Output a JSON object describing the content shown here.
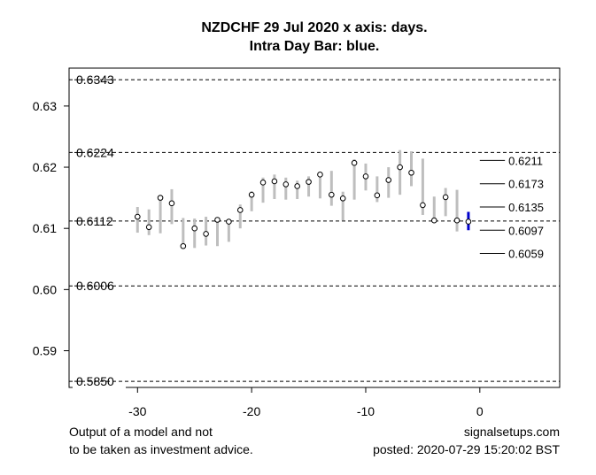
{
  "chart_data": {
    "type": "line",
    "title": "NZDCHF 29 Jul 2020 x axis: days.",
    "subtitle": "Intra Day Bar: blue.",
    "xlim": [
      -36,
      7
    ],
    "ylim": [
      0.584,
      0.6362
    ],
    "x_ticks": [
      -30,
      -20,
      -10,
      0
    ],
    "x_tick_labels": [
      "-30",
      "-20",
      "-10",
      "0"
    ],
    "y_ticks": [
      0.59,
      0.6,
      0.61,
      0.62,
      0.63
    ],
    "y_tick_labels": [
      "0.59",
      "0.60",
      "0.61",
      "0.62",
      "0.63"
    ],
    "reference_lines": [
      {
        "value": 0.6343,
        "label": "0.6343"
      },
      {
        "value": 0.6224,
        "label": "0.6224"
      },
      {
        "value": 0.6112,
        "label": "0.6112"
      },
      {
        "value": 0.6006,
        "label": "0.6006"
      },
      {
        "value": 0.585,
        "label": "0.5850"
      }
    ],
    "level_marks": [
      {
        "value": 0.6211,
        "label": "0.6211"
      },
      {
        "value": 0.6173,
        "label": "0.6173"
      },
      {
        "value": 0.6135,
        "label": "0.6135"
      },
      {
        "value": 0.6097,
        "label": "0.6097"
      },
      {
        "value": 0.6059,
        "label": "0.6059"
      }
    ],
    "bars": [
      {
        "x": -30,
        "low": 0.6093,
        "high": 0.6135,
        "close": 0.6119
      },
      {
        "x": -29,
        "low": 0.6089,
        "high": 0.6131,
        "close": 0.6102
      },
      {
        "x": -28,
        "low": 0.6092,
        "high": 0.6155,
        "close": 0.615
      },
      {
        "x": -27,
        "low": 0.6107,
        "high": 0.6164,
        "close": 0.6141
      },
      {
        "x": -26,
        "low": 0.6067,
        "high": 0.6117,
        "close": 0.6071
      },
      {
        "x": -25,
        "low": 0.6068,
        "high": 0.6116,
        "close": 0.61
      },
      {
        "x": -24,
        "low": 0.6072,
        "high": 0.6119,
        "close": 0.6091
      },
      {
        "x": -23,
        "low": 0.6071,
        "high": 0.6115,
        "close": 0.6114
      },
      {
        "x": -22,
        "low": 0.6078,
        "high": 0.6113,
        "close": 0.6111
      },
      {
        "x": -21,
        "low": 0.61,
        "high": 0.6139,
        "close": 0.613
      },
      {
        "x": -20,
        "low": 0.6128,
        "high": 0.6161,
        "close": 0.6155
      },
      {
        "x": -19,
        "low": 0.6142,
        "high": 0.6183,
        "close": 0.6175
      },
      {
        "x": -18,
        "low": 0.6148,
        "high": 0.6188,
        "close": 0.6177
      },
      {
        "x": -17,
        "low": 0.6147,
        "high": 0.6183,
        "close": 0.6172
      },
      {
        "x": -16,
        "low": 0.6148,
        "high": 0.6178,
        "close": 0.6169
      },
      {
        "x": -15,
        "low": 0.6152,
        "high": 0.6185,
        "close": 0.6176
      },
      {
        "x": -14,
        "low": 0.6149,
        "high": 0.6192,
        "close": 0.6188
      },
      {
        "x": -13,
        "low": 0.6137,
        "high": 0.6194,
        "close": 0.6155
      },
      {
        "x": -12,
        "low": 0.6113,
        "high": 0.616,
        "close": 0.6149
      },
      {
        "x": -11,
        "low": 0.6147,
        "high": 0.6213,
        "close": 0.6207
      },
      {
        "x": -10,
        "low": 0.6162,
        "high": 0.6206,
        "close": 0.6185
      },
      {
        "x": -9,
        "low": 0.6143,
        "high": 0.6185,
        "close": 0.6154
      },
      {
        "x": -8,
        "low": 0.615,
        "high": 0.62,
        "close": 0.6179
      },
      {
        "x": -7,
        "low": 0.6155,
        "high": 0.6228,
        "close": 0.62
      },
      {
        "x": -6,
        "low": 0.6169,
        "high": 0.6226,
        "close": 0.6191
      },
      {
        "x": -5,
        "low": 0.6122,
        "high": 0.6214,
        "close": 0.6138
      },
      {
        "x": -4,
        "low": 0.6113,
        "high": 0.6152,
        "close": 0.6113
      },
      {
        "x": -3,
        "low": 0.612,
        "high": 0.6166,
        "close": 0.6151
      },
      {
        "x": -2,
        "low": 0.6095,
        "high": 0.6163,
        "close": 0.6113
      },
      {
        "x": -1,
        "low": 0.6097,
        "high": 0.6127,
        "close": 0.6111,
        "intraday": true
      }
    ],
    "bar_color": "#bebebe",
    "intraday_color": "#0000cd",
    "reference_line_style": "dashed"
  },
  "footer": {
    "left_line1": "Output of a model and not",
    "left_line2": "to be taken as investment advice.",
    "right_line1": "signalsetups.com",
    "right_line2": "posted: 2020-07-29 15:20:02 BST"
  }
}
